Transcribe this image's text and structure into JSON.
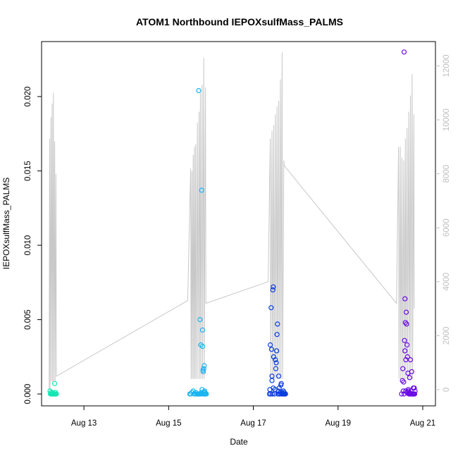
{
  "chart_data": {
    "type": "scatter",
    "title": "ATOM1 Northbound IEPOXsulfMass_PALMS",
    "xlabel": "Date",
    "ylabel": "IEPOXsulfMass_PALMS",
    "xlim": [
      12.0,
      21.3
    ],
    "ylim": [
      -0.0008,
      0.0237
    ],
    "y2lim": [
      -600,
      12900
    ],
    "x_ticks": [
      {
        "value": 13,
        "label": "Aug 13"
      },
      {
        "value": 15,
        "label": "Aug 15"
      },
      {
        "value": 17,
        "label": "Aug 17"
      },
      {
        "value": 19,
        "label": "Aug 19"
      },
      {
        "value": 21,
        "label": "Aug 21"
      }
    ],
    "y_ticks": [
      {
        "value": 0.0,
        "label": "0.000"
      },
      {
        "value": 0.005,
        "label": "0.005"
      },
      {
        "value": 0.01,
        "label": "0.010"
      },
      {
        "value": 0.015,
        "label": "0.015"
      },
      {
        "value": 0.02,
        "label": "0.020"
      }
    ],
    "y2_ticks": [
      {
        "value": 0,
        "label": "0"
      },
      {
        "value": 2000,
        "label": "2000"
      },
      {
        "value": 4000,
        "label": "4000"
      },
      {
        "value": 6000,
        "label": "6000"
      },
      {
        "value": 8000,
        "label": "8000"
      },
      {
        "value": 10000,
        "label": "10000"
      },
      {
        "value": 12000,
        "label": "12000"
      }
    ],
    "grid": false,
    "colors": {
      "altitude_line": "#c8c8c8",
      "axis": "#000000",
      "right_axis": "#c0c0c0"
    },
    "series": [
      {
        "color": "#14e6b4",
        "points": [
          [
            12.2,
            0.0002
          ],
          [
            12.21,
            0.0
          ],
          [
            12.22,
            0.0001
          ],
          [
            12.23,
            0.0
          ],
          [
            12.24,
            0.0
          ],
          [
            12.25,
            0.0
          ],
          [
            12.26,
            0.0001
          ],
          [
            12.27,
            0.0
          ],
          [
            12.28,
            0.0
          ],
          [
            12.29,
            0.0
          ],
          [
            12.3,
            0.0
          ],
          [
            12.31,
            0.0007
          ],
          [
            12.32,
            0.0
          ],
          [
            12.33,
            0.0001
          ],
          [
            12.34,
            0.0
          ],
          [
            12.35,
            0.0
          ]
        ]
      },
      {
        "color": "#1ab4f0",
        "points": [
          [
            15.5,
            0.0
          ],
          [
            15.52,
            0.0
          ],
          [
            15.55,
            0.0001
          ],
          [
            15.58,
            0.0002
          ],
          [
            15.6,
            0.0
          ],
          [
            15.62,
            0.0
          ],
          [
            15.64,
            0.0001
          ],
          [
            15.66,
            0.0
          ],
          [
            15.68,
            0.0
          ],
          [
            15.7,
            0.0
          ],
          [
            15.71,
            0.0204
          ],
          [
            15.72,
            0.0
          ],
          [
            15.73,
            0.0
          ],
          [
            15.74,
            0.005
          ],
          [
            15.75,
            0.0
          ],
          [
            15.76,
            0.0033
          ],
          [
            15.77,
            0.0001
          ],
          [
            15.78,
            0.0137
          ],
          [
            15.79,
            0.0
          ],
          [
            15.8,
            0.0043
          ],
          [
            15.8,
            0.0032
          ],
          [
            15.81,
            0.0016
          ],
          [
            15.82,
            0.0015
          ],
          [
            15.82,
            0.0
          ],
          [
            15.83,
            0.0017
          ],
          [
            15.84,
            0.0019
          ],
          [
            15.85,
            0.0
          ],
          [
            15.86,
            0.0001
          ],
          [
            15.87,
            0.0
          ],
          [
            15.88,
            0.0
          ],
          [
            15.89,
            0.0
          ],
          [
            15.85,
            0.0002
          ],
          [
            15.83,
            0.0001
          ],
          [
            15.79,
            0.0003
          ]
        ]
      },
      {
        "color": "#0a3cdc",
        "points": [
          [
            17.38,
            0.0
          ],
          [
            17.39,
            0.0003
          ],
          [
            17.4,
            0.0033
          ],
          [
            17.41,
            0.0
          ],
          [
            17.42,
            0.0058
          ],
          [
            17.43,
            0.003
          ],
          [
            17.44,
            0.0012
          ],
          [
            17.45,
            0.0
          ],
          [
            17.46,
            0.007
          ],
          [
            17.47,
            0.0072
          ],
          [
            17.48,
            0.0025
          ],
          [
            17.5,
            0.0
          ],
          [
            17.52,
            0.0023
          ],
          [
            17.54,
            0.0021
          ],
          [
            17.55,
            0.0029
          ],
          [
            17.56,
            0.004
          ],
          [
            17.57,
            0.0047
          ],
          [
            17.58,
            0.0
          ],
          [
            17.6,
            0.0012
          ],
          [
            17.62,
            0.0
          ],
          [
            17.63,
            0.0
          ],
          [
            17.64,
            0.0001
          ],
          [
            17.65,
            0.0006
          ],
          [
            17.66,
            0.0007
          ],
          [
            17.67,
            0.0
          ],
          [
            17.68,
            0.0001
          ],
          [
            17.7,
            0.0
          ],
          [
            17.72,
            0.0
          ],
          [
            17.74,
            0.0
          ],
          [
            17.76,
            0.0
          ],
          [
            17.44,
            0.0009
          ],
          [
            17.47,
            0.0004
          ],
          [
            17.51,
            0.0003
          ],
          [
            17.53,
            0.0017
          ],
          [
            17.59,
            0.0002
          ],
          [
            17.61,
            0.0004
          ],
          [
            17.69,
            0.0
          ],
          [
            17.71,
            0.0002
          ],
          [
            17.73,
            0.0001
          ],
          [
            17.75,
            0.0
          ]
        ]
      },
      {
        "color": "#6a0ae6",
        "points": [
          [
            20.5,
            0.0
          ],
          [
            20.52,
            0.0009
          ],
          [
            20.53,
            0.0017
          ],
          [
            20.54,
            0.0002
          ],
          [
            20.55,
            0.0008
          ],
          [
            20.56,
            0.0
          ],
          [
            20.57,
            0.0036
          ],
          [
            20.58,
            0.0064
          ],
          [
            20.59,
            0.0048
          ],
          [
            20.6,
            0.0023
          ],
          [
            20.61,
            0.0055
          ],
          [
            20.62,
            0.0047
          ],
          [
            20.63,
            0.0033
          ],
          [
            20.64,
            0.0025
          ],
          [
            20.65,
            0.0014
          ],
          [
            20.66,
            0.0002
          ],
          [
            20.67,
            0.0
          ],
          [
            20.68,
            0.0
          ],
          [
            20.69,
            0.0001
          ],
          [
            20.7,
            0.0
          ],
          [
            20.71,
            0.0023
          ],
          [
            20.72,
            0.0
          ],
          [
            20.73,
            0.0
          ],
          [
            20.74,
            0.0015
          ],
          [
            20.75,
            0.0
          ],
          [
            20.76,
            0.0
          ],
          [
            20.77,
            0.0
          ],
          [
            20.78,
            0.0004
          ],
          [
            20.79,
            0.0
          ],
          [
            20.8,
            0.0
          ],
          [
            20.81,
            0.0
          ],
          [
            20.82,
            0.0002
          ],
          [
            20.56,
            0.023
          ],
          [
            20.58,
            0.0029
          ],
          [
            20.6,
            0.0002
          ],
          [
            20.63,
            0.0001
          ],
          [
            20.66,
            0.0003
          ],
          [
            20.69,
            0.0011
          ],
          [
            20.72,
            0.0002
          ],
          [
            20.8,
            0.0004
          ]
        ]
      }
    ],
    "altitude": [
      [
        12.18,
        0
      ],
      [
        12.19,
        9300
      ],
      [
        12.2,
        0
      ],
      [
        12.22,
        10100
      ],
      [
        12.23,
        300
      ],
      [
        12.25,
        10600
      ],
      [
        12.26,
        300
      ],
      [
        12.28,
        11000
      ],
      [
        12.29,
        300
      ],
      [
        12.31,
        9200
      ],
      [
        12.32,
        300
      ],
      [
        12.34,
        8000
      ],
      [
        12.35,
        500
      ],
      [
        15.45,
        3300
      ],
      [
        15.52,
        8200
      ],
      [
        15.53,
        400
      ],
      [
        15.55,
        8100
      ],
      [
        15.56,
        400
      ],
      [
        15.58,
        8700
      ],
      [
        15.59,
        400
      ],
      [
        15.61,
        9000
      ],
      [
        15.62,
        400
      ],
      [
        15.64,
        9100
      ],
      [
        15.65,
        400
      ],
      [
        15.68,
        9900
      ],
      [
        15.69,
        400
      ],
      [
        15.72,
        10300
      ],
      [
        15.73,
        400
      ],
      [
        15.75,
        11000
      ],
      [
        15.76,
        400
      ],
      [
        15.79,
        11300
      ],
      [
        15.8,
        400
      ],
      [
        15.83,
        12300
      ],
      [
        15.84,
        400
      ],
      [
        15.87,
        11200
      ],
      [
        15.88,
        3200
      ],
      [
        17.35,
        4000
      ],
      [
        17.4,
        9300
      ],
      [
        17.41,
        400
      ],
      [
        17.44,
        9600
      ],
      [
        17.45,
        400
      ],
      [
        17.48,
        9800
      ],
      [
        17.49,
        400
      ],
      [
        17.52,
        10200
      ],
      [
        17.53,
        400
      ],
      [
        17.56,
        10500
      ],
      [
        17.57,
        400
      ],
      [
        17.6,
        10700
      ],
      [
        17.61,
        400
      ],
      [
        17.64,
        11500
      ],
      [
        17.65,
        400
      ],
      [
        17.68,
        12500
      ],
      [
        17.69,
        400
      ],
      [
        17.72,
        8500
      ],
      [
        17.73,
        8300
      ],
      [
        20.38,
        3200
      ],
      [
        20.43,
        9000
      ],
      [
        20.44,
        400
      ],
      [
        20.47,
        9000
      ],
      [
        20.48,
        400
      ],
      [
        20.51,
        8600
      ],
      [
        20.52,
        400
      ],
      [
        20.55,
        8500
      ],
      [
        20.56,
        400
      ],
      [
        20.59,
        9300
      ],
      [
        20.6,
        400
      ],
      [
        20.63,
        9700
      ],
      [
        20.64,
        400
      ],
      [
        20.67,
        10300
      ],
      [
        20.68,
        400
      ],
      [
        20.71,
        10900
      ],
      [
        20.72,
        400
      ],
      [
        20.75,
        11700
      ],
      [
        20.76,
        400
      ],
      [
        20.79,
        10200
      ],
      [
        20.8,
        3000
      ]
    ]
  }
}
